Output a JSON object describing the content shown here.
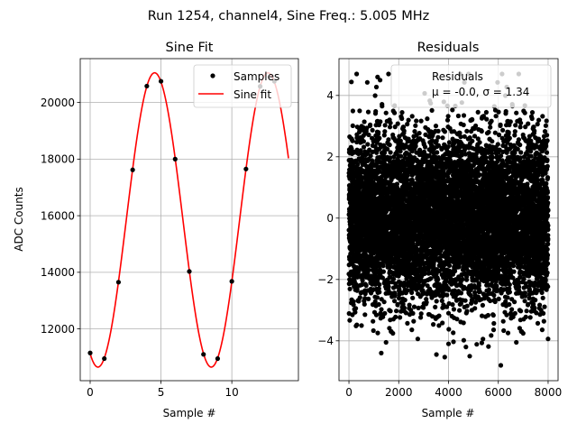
{
  "figure": {
    "suptitle": "Run 1254, channel4, Sine Freq.: 5.005 MHz"
  },
  "chart_data": [
    {
      "type": "line",
      "title": "Sine Fit",
      "xlabel": "Sample #",
      "ylabel": "ADC Counts",
      "xlim": [
        -0.7,
        14.7
      ],
      "ylim": [
        10170,
        21550
      ],
      "xticks": [
        0,
        5,
        10
      ],
      "yticks": [
        12000,
        14000,
        16000,
        18000,
        20000
      ],
      "grid": true,
      "legend": {
        "position": "top-right",
        "entries": [
          "Samples",
          "Sine fit"
        ]
      },
      "series": [
        {
          "name": "Samples",
          "kind": "scatter",
          "color": "#000000",
          "x": [
            0,
            1,
            2,
            3,
            4,
            5,
            6,
            7,
            8,
            9,
            10,
            11,
            12,
            13
          ],
          "y": [
            11150,
            10950,
            13650,
            17620,
            20580,
            20750,
            18000,
            14030,
            11100,
            10950,
            13680,
            17650,
            20570,
            20750
          ]
        },
        {
          "name": "Sine fit",
          "kind": "line",
          "color": "#ff0000",
          "model": {
            "offset": 15850,
            "amplitude": 5200,
            "period": 8.0,
            "peak_at": 4.55,
            "x_start": 0,
            "x_end": 14
          }
        }
      ]
    },
    {
      "type": "scatter",
      "title": "Residuals",
      "xlabel": "Sample #",
      "ylabel": "",
      "xlim": [
        -400,
        8400
      ],
      "ylim": [
        -5.3,
        5.2
      ],
      "xticks": [
        0,
        2000,
        4000,
        6000,
        8000
      ],
      "yticks": [
        -4,
        -2,
        0,
        2,
        4
      ],
      "grid": true,
      "legend": {
        "position": "top-right",
        "entries": [
          "Residuals",
          "μ = -0.0, σ = 1.34"
        ]
      },
      "series": [
        {
          "name": "Residuals",
          "color": "#000000",
          "n_points": 8000,
          "x_range": [
            0,
            8000
          ],
          "mean": 0.0,
          "std": 1.34,
          "min": -4.8,
          "max": 4.7,
          "outliers": [
            [
              1150,
              4.6
            ],
            [
              1250,
              4.5
            ],
            [
              6150,
              4.7
            ],
            [
              6100,
              -4.8
            ],
            [
              4850,
              -4.5
            ],
            [
              1300,
              -4.4
            ],
            [
              4000,
              -4.1
            ],
            [
              4700,
              -4.2
            ]
          ]
        }
      ]
    }
  ]
}
